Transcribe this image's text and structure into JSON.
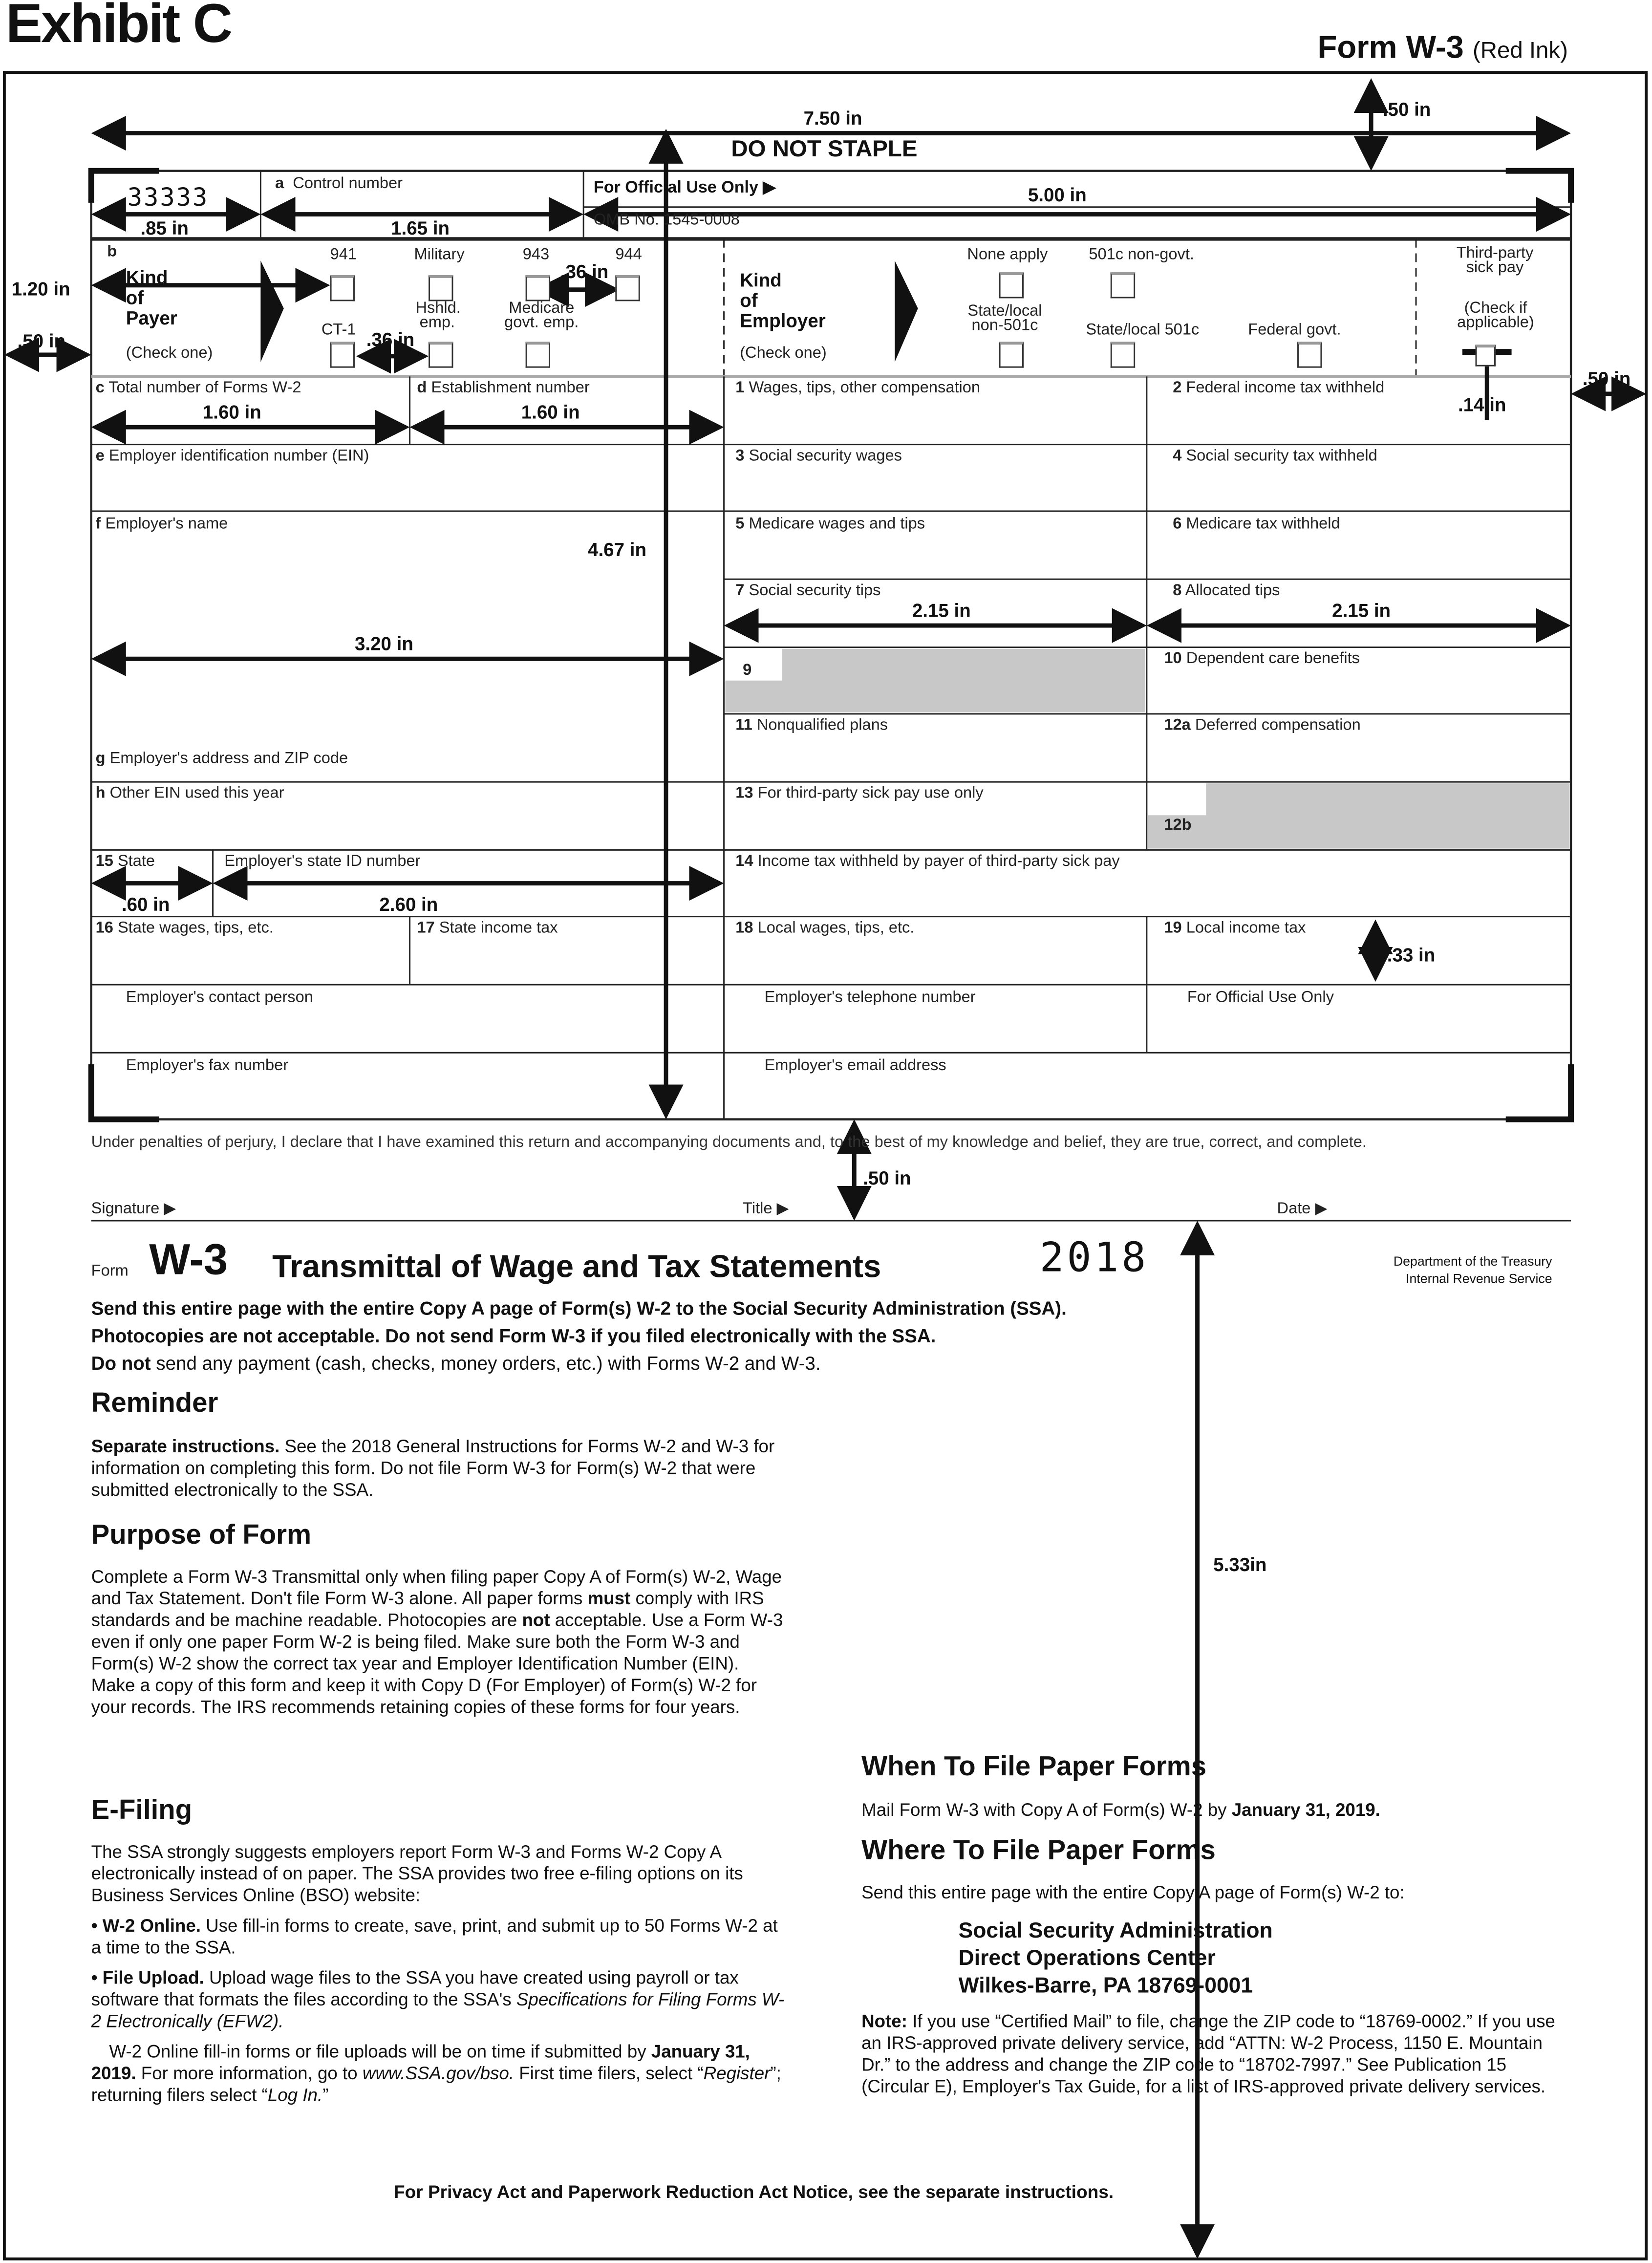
{
  "header": {
    "exhibit": "Exhibit C",
    "form_label": "Form W-3",
    "ink_note": "(Red Ink)"
  },
  "dimensions": {
    "top_margin": ".50 in",
    "width": "7.50 in",
    "stub": ".85 in",
    "control": "1.65 in",
    "official": "5.00 in",
    "kind_height": "1.20 in",
    "left_margin": ".50 in",
    "box_gap1": ".36 in",
    "box_gap2": ".36 in",
    "right_margin": ".50 in",
    "checkbox": ".14 in",
    "c_width": "1.60 in",
    "d_width": "1.60 in",
    "height_left": "4.67 in",
    "box7": "2.15 in",
    "box8": "2.15 in",
    "left_col": "3.20 in",
    "state": ".60 in",
    "state_id": "2.60 in",
    "box19": ".33 in",
    "sig_gap": ".50 in",
    "bottom": "5.33in"
  },
  "form": {
    "do_not_staple": "DO NOT STAPLE",
    "code": "33333",
    "control_letter": "a",
    "control_label": "Control number",
    "official_use": "For Official Use Only ▶",
    "omb": "OMB No. 1545-0008",
    "payer": {
      "letter": "b",
      "title1": "Kind",
      "title2": "of",
      "title3": "Payer",
      "check": "(Check one)",
      "options": [
        "941",
        "Military",
        "943",
        "944",
        "CT-1",
        "Hshld. emp.",
        "Medicare govt. emp."
      ]
    },
    "employer": {
      "title1": "Kind",
      "title2": "of",
      "title3": "Employer",
      "check": "(Check one)",
      "options": [
        "None apply",
        "501c non-govt.",
        "State/local non-501c",
        "State/local 501c",
        "Federal govt."
      ]
    },
    "third_party": {
      "label": "Third-party sick pay",
      "check": "(Check if applicable)"
    },
    "boxes": {
      "c": [
        "c",
        "Total number of Forms W-2"
      ],
      "d": [
        "d",
        "Establishment number"
      ],
      "e": [
        "e",
        "Employer identification number (EIN)"
      ],
      "f": [
        "f",
        "Employer's name"
      ],
      "g": [
        "g",
        "Employer's address and ZIP code"
      ],
      "h": [
        "h",
        "Other EIN used this year"
      ],
      "b15": [
        "15",
        "State"
      ],
      "state_id": "Employer's state ID number",
      "b16": [
        "16",
        "State wages, tips, etc."
      ],
      "b17": [
        "17",
        "State income tax"
      ],
      "contact": "Employer's contact person",
      "fax": "Employer's fax number",
      "b1": [
        "1",
        "Wages, tips, other compensation"
      ],
      "b2": [
        "2",
        "Federal income tax withheld"
      ],
      "b3": [
        "3",
        "Social security wages"
      ],
      "b4": [
        "4",
        "Social security tax withheld"
      ],
      "b5": [
        "5",
        "Medicare wages and tips"
      ],
      "b6": [
        "6",
        "Medicare tax withheld"
      ],
      "b7": [
        "7",
        "Social security tips"
      ],
      "b8": [
        "8",
        "Allocated tips"
      ],
      "b9": "9",
      "b10": [
        "10",
        "Dependent care benefits"
      ],
      "b11": [
        "11",
        "Nonqualified plans"
      ],
      "b12a": [
        "12a",
        "Deferred compensation"
      ],
      "b13": [
        "13",
        "For third-party sick pay use only"
      ],
      "b12b": "12b",
      "b14": [
        "14",
        "Income tax withheld by payer of third-party sick pay"
      ],
      "b18": [
        "18",
        "Local wages, tips, etc."
      ],
      "b19": [
        "19",
        "Local income tax"
      ],
      "phone": "Employer's telephone number",
      "official2": "For Official Use Only",
      "email": "Employer's email address"
    },
    "perjury": "Under penalties of perjury, I declare that I have examined this return and accompanying documents and, to the best of my knowledge and belief, they are true, correct, and complete.",
    "signature": "Signature ▶",
    "title": "Title ▶",
    "date": "Date ▶"
  },
  "title_block": {
    "form": "Form",
    "number": "W-3",
    "title": "Transmittal of Wage and Tax Statements",
    "year": "2018",
    "dept1": "Department of the Treasury",
    "dept2": "Internal Revenue Service",
    "line1": "Send this entire page with the entire Copy A page of Form(s) W-2 to the Social Security Administration (SSA).",
    "line2": "Photocopies are not acceptable. Do not send Form W-3 if you filed electronically with the SSA.",
    "line3": [
      {
        "t": "Do not",
        "s": "b"
      },
      {
        "t": " send any payment (cash, checks, money orders, etc.) with Forms W-2 and W-3."
      }
    ]
  },
  "reminder": {
    "heading": "Reminder",
    "text": [
      {
        "t": "Separate instructions.",
        "s": "b"
      },
      {
        "t": " See the 2018 General Instructions for Forms W-2 and W-3 for information on completing this form. Do not file Form W-3 for Form(s) W-2 that were submitted electronically to the SSA."
      }
    ]
  },
  "purpose": {
    "heading": "Purpose of Form",
    "text": [
      {
        "t": "Complete a Form W-3 Transmittal only when filing paper Copy A of Form(s) W-2, Wage and Tax Statement. Don't file Form W-3 alone. All paper forms "
      },
      {
        "t": "must",
        "s": "b"
      },
      {
        "t": " comply with IRS standards and be machine readable. Photocopies are "
      },
      {
        "t": "not",
        "s": "b"
      },
      {
        "t": " acceptable. Use a Form W-3 even if only one paper Form W-2 is being filed. Make sure both the Form W-3 and Form(s) W-2 show the correct tax year and Employer Identification Number (EIN). Make a copy of this form and keep it with Copy D (For Employer) of Form(s) W-2 for your records. The IRS recommends retaining copies of these forms for four years."
      }
    ]
  },
  "efiling": {
    "heading": "E-Filing",
    "intro": [
      {
        "t": "The SSA strongly suggests employers report Form W-3 and Forms W-2 Copy A electronically instead of on paper. The SSA provides two free e-filing options on its Business Services Online (BSO) website:"
      }
    ],
    "bullet1": [
      {
        "t": "• W-2 Online.",
        "s": "b"
      },
      {
        "t": " Use fill-in forms to create, save, print, and submit up to 50 Forms W-2 at a time to the SSA."
      }
    ],
    "bullet2": [
      {
        "t": "• File Upload.",
        "s": "b"
      },
      {
        "t": " Upload wage files to the SSA you have created using payroll or tax software that formats the files according to the SSA's "
      },
      {
        "t": "Specifications for Filing Forms W-2 Electronically (EFW2).",
        "s": "i"
      }
    ],
    "closing": [
      {
        "t": " W-2 Online fill-in forms or file uploads will be on time if submitted by "
      },
      {
        "t": "January 31, 2019.",
        "s": "b"
      },
      {
        "t": " For more information, go to "
      },
      {
        "t": "www.SSA.gov/bso.",
        "s": "i"
      },
      {
        "t": " First time filers, select “"
      },
      {
        "t": "Register",
        "s": "i"
      },
      {
        "t": "”; returning filers select “"
      },
      {
        "t": "Log In.",
        "s": "i"
      },
      {
        "t": "”"
      }
    ]
  },
  "when": {
    "heading": "When To File Paper Forms",
    "text": [
      {
        "t": "Mail Form W-3 with Copy A of Form(s) W-2 by "
      },
      {
        "t": "January 31, 2019.",
        "s": "b"
      }
    ]
  },
  "where": {
    "heading": "Where To File Paper Forms",
    "text": "Send this entire page with the entire Copy A page of Form(s) W-2 to:",
    "address": [
      "Social Security Administration",
      "Direct Operations Center",
      "Wilkes-Barre, PA 18769-0001"
    ],
    "note": [
      {
        "t": "Note:",
        "s": "b"
      },
      {
        "t": " If you use “Certified Mail” to file, change the ZIP code to “18769-0002.” If you use an IRS-approved private delivery service, add “ATTN: W-2 Process, 1150 E. Mountain Dr.” to the address and change the ZIP code to “18702-7997.” See Publication 15 (Circular E), Employer's Tax Guide, for a list of IRS-approved private delivery services."
      }
    ]
  },
  "footer": "For Privacy Act and Paperwork Reduction Act Notice, see the separate instructions."
}
